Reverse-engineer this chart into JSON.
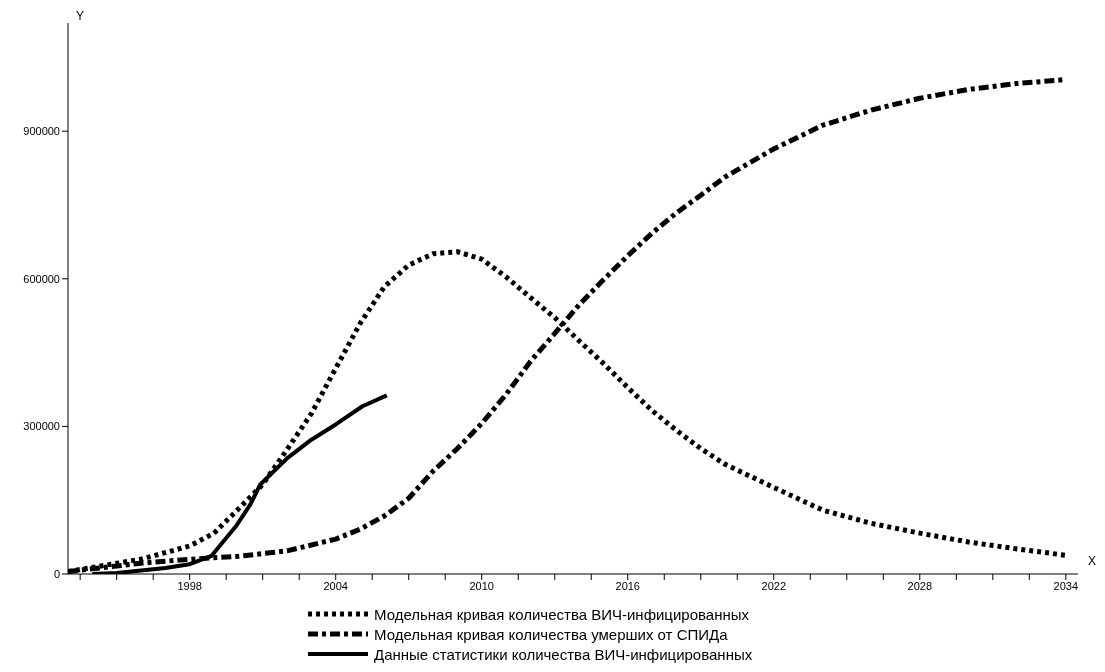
{
  "chart_data": {
    "type": "line",
    "xlabel": "X",
    "ylabel": "Y",
    "xlim": [
      1993,
      2034.5
    ],
    "ylim": [
      0,
      1120000
    ],
    "xticks": [
      {
        "value": 1993.5,
        "label": null
      },
      {
        "value": 1995,
        "label": null
      },
      {
        "value": 1996.5,
        "label": null
      },
      1998,
      {
        "value": 1999.5,
        "label": null
      },
      {
        "value": 2001,
        "label": null
      },
      {
        "value": 2002.5,
        "label": null
      },
      2004,
      {
        "value": 2005.5,
        "label": null
      },
      {
        "value": 2007,
        "label": null
      },
      {
        "value": 2008.5,
        "label": null
      },
      2010,
      {
        "value": 2011.5,
        "label": null
      },
      {
        "value": 2013,
        "label": null
      },
      {
        "value": 2014.5,
        "label": null
      },
      2016,
      {
        "value": 2017.5,
        "label": null
      },
      {
        "value": 2019,
        "label": null
      },
      {
        "value": 2020.5,
        "label": null
      },
      2022,
      {
        "value": 2023.5,
        "label": null
      },
      {
        "value": 2025,
        "label": null
      },
      {
        "value": 2026.5,
        "label": null
      },
      2028,
      {
        "value": 2029.5,
        "label": null
      },
      {
        "value": 2031,
        "label": null
      },
      {
        "value": 2032.5,
        "label": null
      },
      2034
    ],
    "yticks": [
      0,
      300000,
      600000,
      900000
    ],
    "grid": false,
    "legend": "bottom",
    "marker": "none",
    "series": [
      {
        "name": "Модельная кривая количества ВИЧ-инфицированных",
        "color": "#000000",
        "line_style": "dotted",
        "x": [
          1993,
          1996,
          1998,
          1999,
          2000,
          2001,
          2002,
          2003,
          2004,
          2005,
          2006,
          2007,
          2008,
          2009,
          2010,
          2011,
          2012,
          2013,
          2014,
          2015,
          2016,
          2017,
          2018,
          2019,
          2020,
          2022,
          2024,
          2026,
          2028,
          2030,
          2032,
          2034
        ],
        "values": [
          5000,
          30000,
          57000,
          83000,
          132000,
          182000,
          253000,
          326000,
          418000,
          509000,
          584000,
          628000,
          651000,
          655000,
          640000,
          604000,
          562000,
          521000,
          474000,
          428000,
          379000,
          332000,
          292000,
          255000,
          223000,
          176000,
          130000,
          103000,
          83000,
          65000,
          51000,
          38000
        ]
      },
      {
        "name": "Модельная кривая количества умерших от СПИДа",
        "color": "#000000",
        "line_style": "dashed",
        "x": [
          1993,
          1996,
          1998,
          2000,
          2002,
          2004,
          2005,
          2006,
          2007,
          2008,
          2009,
          2010,
          2011,
          2012,
          2013,
          2014,
          2015,
          2016,
          2017,
          2018,
          2019,
          2020,
          2022,
          2024,
          2026,
          2028,
          2030,
          2032,
          2034
        ],
        "values": [
          5000,
          22000,
          30000,
          36000,
          47000,
          71000,
          91000,
          118000,
          154000,
          209000,
          255000,
          306000,
          365000,
          432000,
          489000,
          547000,
          598000,
          647000,
          693000,
          734000,
          770000,
          807000,
          864000,
          912000,
          943000,
          967000,
          985000,
          997000,
          1005000
        ]
      },
      {
        "name": "Данные статистики количества ВИЧ-инфицированных",
        "color": "#000000",
        "line_style": "solid",
        "x": [
          1994,
          1995,
          1997,
          1998,
          1998.9,
          1999.9,
          2000.5,
          2000.9,
          2002,
          2003,
          2004,
          2005.1,
          2006.1
        ],
        "values": [
          0,
          2000,
          12000,
          20000,
          37000,
          97000,
          142000,
          182000,
          235000,
          273000,
          304000,
          341000,
          363000
        ]
      }
    ]
  }
}
